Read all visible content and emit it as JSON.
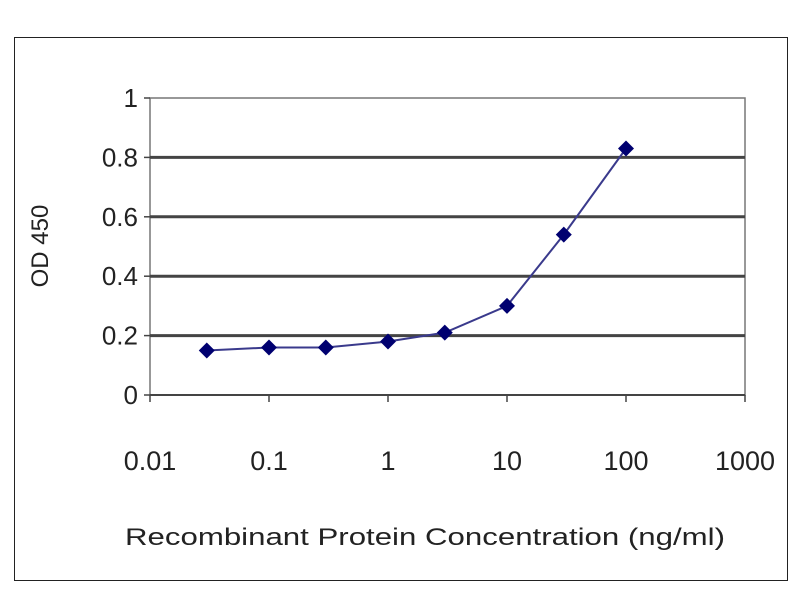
{
  "chart_data": {
    "type": "line",
    "title": "",
    "xlabel": "Recombinant Protein Concentration (ng/ml)",
    "ylabel": "OD 450",
    "x_scale": "log",
    "xlim": [
      0.01,
      1000
    ],
    "ylim": [
      0,
      1
    ],
    "x_ticks": [
      "0.01",
      "0.1",
      "1",
      "10",
      "100",
      "1000"
    ],
    "y_ticks": [
      "0",
      "0.2",
      "0.4",
      "0.6",
      "0.8",
      "1"
    ],
    "grid": "horizontal",
    "legend": "none",
    "series": [
      {
        "x": [
          0.03,
          0.1,
          0.3,
          1,
          3,
          10,
          30,
          100
        ],
        "values": [
          0.15,
          0.16,
          0.16,
          0.18,
          0.21,
          0.3,
          0.54,
          0.83
        ],
        "color": "#3a3a8c",
        "marker": "diamond",
        "marker_color": "#000070"
      }
    ]
  }
}
